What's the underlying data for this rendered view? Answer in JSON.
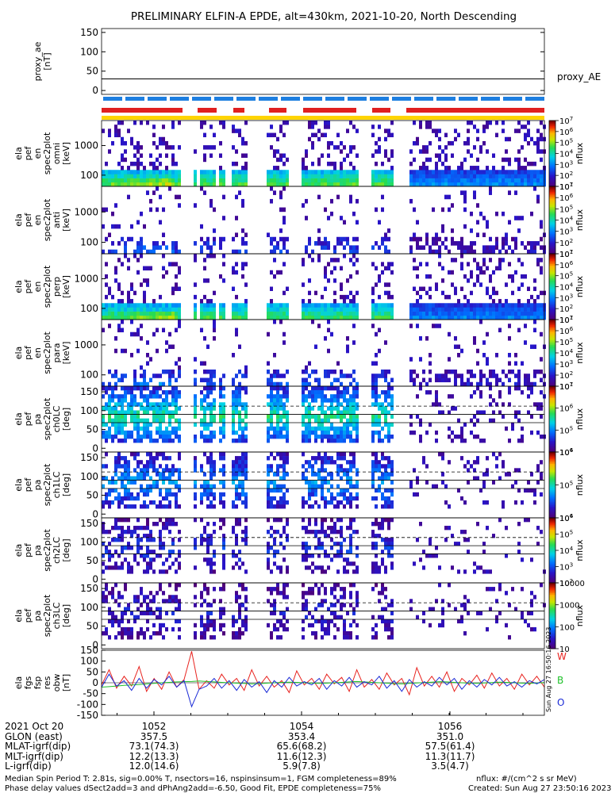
{
  "title": "PRELIMINARY ELFIN-A EPDE, alt=430km, 2021-10-20, North Descending",
  "side_stamp": "Sun Aug 27 16:50:16 2023",
  "chart_data": [
    {
      "type": "line",
      "id": "proxy_ae",
      "ylabel": [
        "proxy_ae",
        "[nT]"
      ],
      "yticks": [
        0,
        50,
        100,
        150
      ],
      "ylim": [
        -10,
        160
      ],
      "series": [
        {
          "name": "proxy_AE",
          "values": [
            30,
            30
          ]
        }
      ]
    },
    {
      "type": "heatmap",
      "id": "spec_omni_1",
      "ylabel": [
        "ela",
        "pef",
        "en",
        "spec2plot",
        "omni",
        "[keV]"
      ],
      "yticks": [
        "100",
        "1000"
      ],
      "colorbar": {
        "label": "nflux",
        "ticks": [
          "10^1",
          "10^2",
          "10^3",
          "10^4",
          "10^5",
          "10^6",
          "10^7"
        ]
      }
    },
    {
      "type": "heatmap",
      "id": "spec_anti_1",
      "ylabel": [
        "ela",
        "pef",
        "en",
        "spec2plot",
        "anti",
        "[keV]"
      ],
      "yticks": [
        "100",
        "1000"
      ],
      "colorbar": {
        "label": "nflux",
        "ticks": [
          "10^1",
          "10^2",
          "10^3",
          "10^4",
          "10^5",
          "10^6",
          "10^7"
        ]
      }
    },
    {
      "type": "heatmap",
      "id": "spec_perp",
      "ylabel": [
        "ela",
        "pef",
        "en",
        "spec2plot",
        "perp",
        "[keV]"
      ],
      "yticks": [
        "100",
        "1000"
      ],
      "colorbar": {
        "label": "nflux",
        "ticks": [
          "10^1",
          "10^2",
          "10^3",
          "10^4",
          "10^5",
          "10^6",
          "10^7"
        ]
      }
    },
    {
      "type": "heatmap",
      "id": "spec_para",
      "ylabel": [
        "ela",
        "pef",
        "en",
        "spec2plot",
        "para",
        "[keV]"
      ],
      "yticks": [
        "100",
        "1000"
      ],
      "colorbar": {
        "label": "nflux",
        "ticks": [
          "10^1",
          "10^2",
          "10^3",
          "10^4",
          "10^5",
          "10^6",
          "10^7"
        ]
      }
    },
    {
      "type": "heatmap",
      "id": "pa_ch0",
      "ylabel": [
        "ela",
        "pef",
        "pa",
        "spec2plot",
        "ch0LC",
        "[deg]"
      ],
      "yticks": [
        0,
        50,
        100,
        150
      ],
      "colorbar": {
        "label": "nflux",
        "ticks": [
          "10^4",
          "10^5",
          "10^6",
          "10^7"
        ]
      }
    },
    {
      "type": "heatmap",
      "id": "pa_ch1",
      "ylabel": [
        "ela",
        "pef",
        "pa",
        "spec2plot",
        "ch1LC",
        "[deg]"
      ],
      "yticks": [
        0,
        50,
        100,
        150
      ],
      "colorbar": {
        "label": "nflux",
        "ticks": [
          "10^4",
          "10^5",
          "10^6"
        ]
      }
    },
    {
      "type": "heatmap",
      "id": "pa_ch2",
      "ylabel": [
        "ela",
        "pef",
        "pa",
        "spec2plot",
        "ch2LC",
        "[deg]"
      ],
      "yticks": [
        0,
        50,
        100,
        150
      ],
      "colorbar": {
        "label": "nflux",
        "ticks": [
          "10^2",
          "10^3",
          "10^4",
          "10^5",
          "10^6"
        ]
      }
    },
    {
      "type": "heatmap",
      "id": "pa_ch3",
      "ylabel": [
        "ela",
        "pef",
        "pa",
        "spec2plot",
        "ch3LC",
        "[deg]"
      ],
      "yticks": [
        0,
        50,
        100,
        150
      ],
      "colorbar": {
        "label": "nflux",
        "ticks": [
          "10",
          "100",
          "1000",
          "10000"
        ]
      }
    },
    {
      "type": "line",
      "id": "fgs_res",
      "ylabel": [
        "ela",
        "fgs",
        "fsp",
        "res",
        "obw",
        "[nT]"
      ],
      "yticks": [
        -150,
        -100,
        -50,
        0,
        50,
        100,
        150
      ],
      "ylim": [
        -150,
        150
      ],
      "legend": [
        "W",
        "B",
        "O"
      ],
      "series": [
        {
          "name": "W",
          "color": "#e8231f",
          "values": [
            -10,
            60,
            -25,
            30,
            -15,
            75,
            -40,
            20,
            -30,
            50,
            -20,
            15,
            145,
            -30,
            10,
            -25,
            40,
            -10,
            20,
            -35,
            60,
            -15,
            30,
            -20,
            10,
            -45,
            55,
            -10,
            20,
            -30,
            40,
            -5,
            25,
            -40,
            60,
            -20,
            15,
            -30,
            45,
            -10,
            20,
            -55,
            70,
            -15,
            30,
            -20,
            50,
            -40,
            20,
            -10,
            35,
            -25,
            45,
            -15,
            20,
            -30,
            40,
            -10,
            30,
            -20
          ]
        },
        {
          "name": "B",
          "color": "#1fc12a",
          "values": [
            -20,
            -18,
            -15,
            -12,
            -10,
            -8,
            -5,
            -3,
            0,
            2,
            4,
            5,
            6,
            8,
            6,
            4,
            2,
            0,
            -2,
            -3,
            -5,
            -4,
            -2,
            0,
            2,
            3,
            2,
            0,
            -2,
            -3,
            -2,
            0,
            2,
            4,
            6,
            4,
            2,
            0,
            -2,
            -4,
            -5,
            -3,
            -1,
            1,
            3,
            5,
            4,
            2,
            0,
            -2,
            -3,
            -1,
            1,
            3,
            2,
            0,
            -2,
            -3,
            -1,
            1
          ]
        },
        {
          "name": "O",
          "color": "#1a2ad6",
          "values": [
            -20,
            40,
            -15,
            10,
            -35,
            20,
            -25,
            15,
            -10,
            30,
            -20,
            10,
            -110,
            -30,
            -15,
            20,
            -25,
            10,
            -35,
            15,
            -20,
            5,
            -45,
            10,
            -20,
            25,
            -15,
            5,
            -10,
            20,
            -30,
            10,
            -15,
            25,
            -20,
            5,
            -10,
            30,
            -25,
            10,
            -40,
            15,
            -20,
            5,
            -15,
            25,
            -10,
            20,
            -30,
            10,
            -20,
            15,
            -10,
            25,
            -15,
            5,
            -20,
            10,
            -5,
            15
          ]
        }
      ]
    }
  ],
  "time_axis": {
    "ticks": [
      "1052",
      "1054",
      "1056"
    ],
    "rows": [
      {
        "label": "2021 Oct 20",
        "values": [
          "1052",
          "1054",
          "1056"
        ]
      },
      {
        "label": "GLON (east)",
        "values": [
          "357.5",
          "353.4",
          "351.0"
        ]
      },
      {
        "label": "MLAT-igrf(dip)",
        "values": [
          "73.1(74.3)",
          "65.6(68.2)",
          "57.5(61.4)"
        ]
      },
      {
        "label": "MLT-igrf(dip)",
        "values": [
          "12.2(13.3)",
          "11.6(12.3)",
          "11.3(11.7)"
        ]
      },
      {
        "label": "L-igrf(dip)",
        "values": [
          "12.0(14.6)",
          "5.9(7.8)",
          "3.5(4.7)"
        ]
      }
    ]
  },
  "footer": {
    "line1": "Median Spin Period T: 2.81s, sig=0.00% T, nsectors=16, nspinsinsum=1, FGM completeness=89%",
    "line2": "Phase delay values dSect2add=3 and dPhAng2add=-6.50, Good Fit, EPDE completeness=75%",
    "units": "nflux: #/(cm^2 s sr MeV)",
    "created": "Created: Sun Aug 27 23:50:16 2023"
  }
}
